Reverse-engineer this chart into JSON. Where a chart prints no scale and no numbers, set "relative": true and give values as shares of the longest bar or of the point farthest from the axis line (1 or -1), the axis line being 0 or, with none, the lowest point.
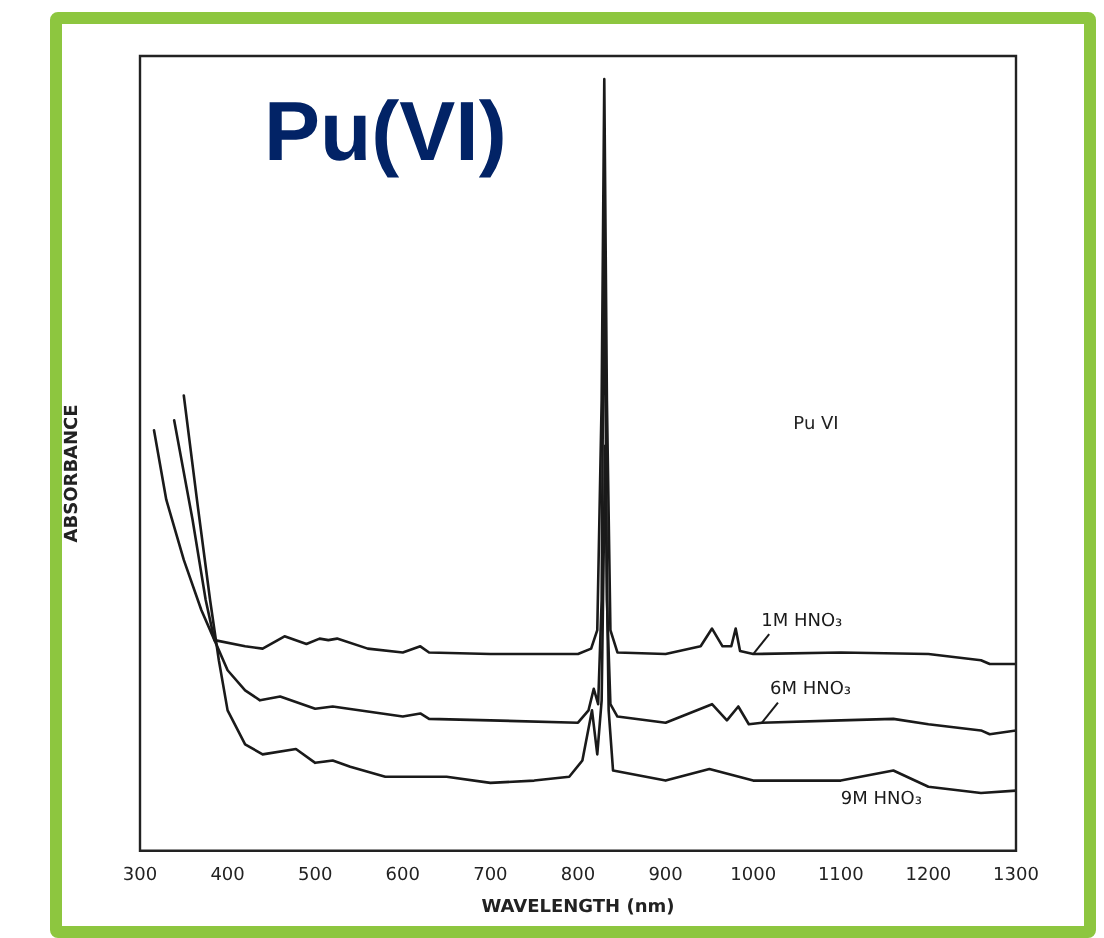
{
  "chart_data": {
    "type": "line",
    "title": "Pu(VI)",
    "xlabel": "WAVELENGTH (nm)",
    "ylabel": "ABSORBANCE",
    "annotations": [
      "Pu VI"
    ],
    "relative": true,
    "xlim": [
      300,
      1300
    ],
    "xticks": [
      300,
      400,
      500,
      600,
      700,
      800,
      900,
      1000,
      1100,
      1200,
      1300
    ],
    "grid": false,
    "legend": false,
    "marker": "none",
    "line_style": "solid",
    "series": [
      {
        "name": "1M HNO₃",
        "color": "#1a1a1a",
        "x": [
          316,
          330,
          350,
          370,
          385,
          420,
          440,
          465,
          490,
          505,
          515,
          525,
          560,
          600,
          620,
          630,
          700,
          800,
          815,
          822,
          827,
          830,
          833,
          837,
          845,
          900,
          940,
          953,
          965,
          975,
          980,
          985,
          1000,
          1100,
          1200,
          1260,
          1270,
          1300
        ],
        "values": [
          0.545,
          0.455,
          0.377,
          0.312,
          0.273,
          0.265,
          0.262,
          0.278,
          0.268,
          0.275,
          0.273,
          0.275,
          0.262,
          0.257,
          0.265,
          0.257,
          0.255,
          0.255,
          0.262,
          0.286,
          0.584,
          1.0,
          0.584,
          0.286,
          0.257,
          0.255,
          0.265,
          0.288,
          0.265,
          0.265,
          0.288,
          0.259,
          0.255,
          0.257,
          0.255,
          0.247,
          0.242,
          0.242
        ]
      },
      {
        "name": "6M HNO₃",
        "color": "#1a1a1a",
        "x": [
          339,
          360,
          375,
          385,
          400,
          420,
          437,
          460,
          500,
          520,
          600,
          620,
          630,
          700,
          800,
          812,
          818,
          823,
          827,
          830,
          833,
          837,
          845,
          900,
          953,
          970,
          983,
          995,
          1010,
          1100,
          1160,
          1200,
          1260,
          1270,
          1300
        ],
        "values": [
          0.558,
          0.429,
          0.325,
          0.273,
          0.234,
          0.208,
          0.195,
          0.2,
          0.184,
          0.187,
          0.174,
          0.178,
          0.171,
          0.169,
          0.166,
          0.182,
          0.21,
          0.19,
          0.325,
          0.855,
          0.325,
          0.19,
          0.174,
          0.166,
          0.19,
          0.169,
          0.187,
          0.164,
          0.166,
          0.169,
          0.171,
          0.164,
          0.156,
          0.151,
          0.156
        ]
      },
      {
        "name": "9M HNO₃",
        "color": "#1a1a1a",
        "x": [
          350,
          365,
          380,
          390,
          400,
          420,
          440,
          478,
          500,
          520,
          540,
          580,
          650,
          700,
          750,
          790,
          805,
          816,
          822,
          827,
          831,
          835,
          840,
          900,
          950,
          1000,
          1100,
          1160,
          1200,
          1260,
          1300
        ],
        "values": [
          0.59,
          0.455,
          0.325,
          0.247,
          0.182,
          0.138,
          0.125,
          0.132,
          0.114,
          0.117,
          0.109,
          0.096,
          0.096,
          0.088,
          0.091,
          0.096,
          0.117,
          0.182,
          0.125,
          0.195,
          0.525,
          0.182,
          0.104,
          0.091,
          0.106,
          0.091,
          0.091,
          0.104,
          0.083,
          0.075,
          0.078
        ]
      }
    ]
  }
}
